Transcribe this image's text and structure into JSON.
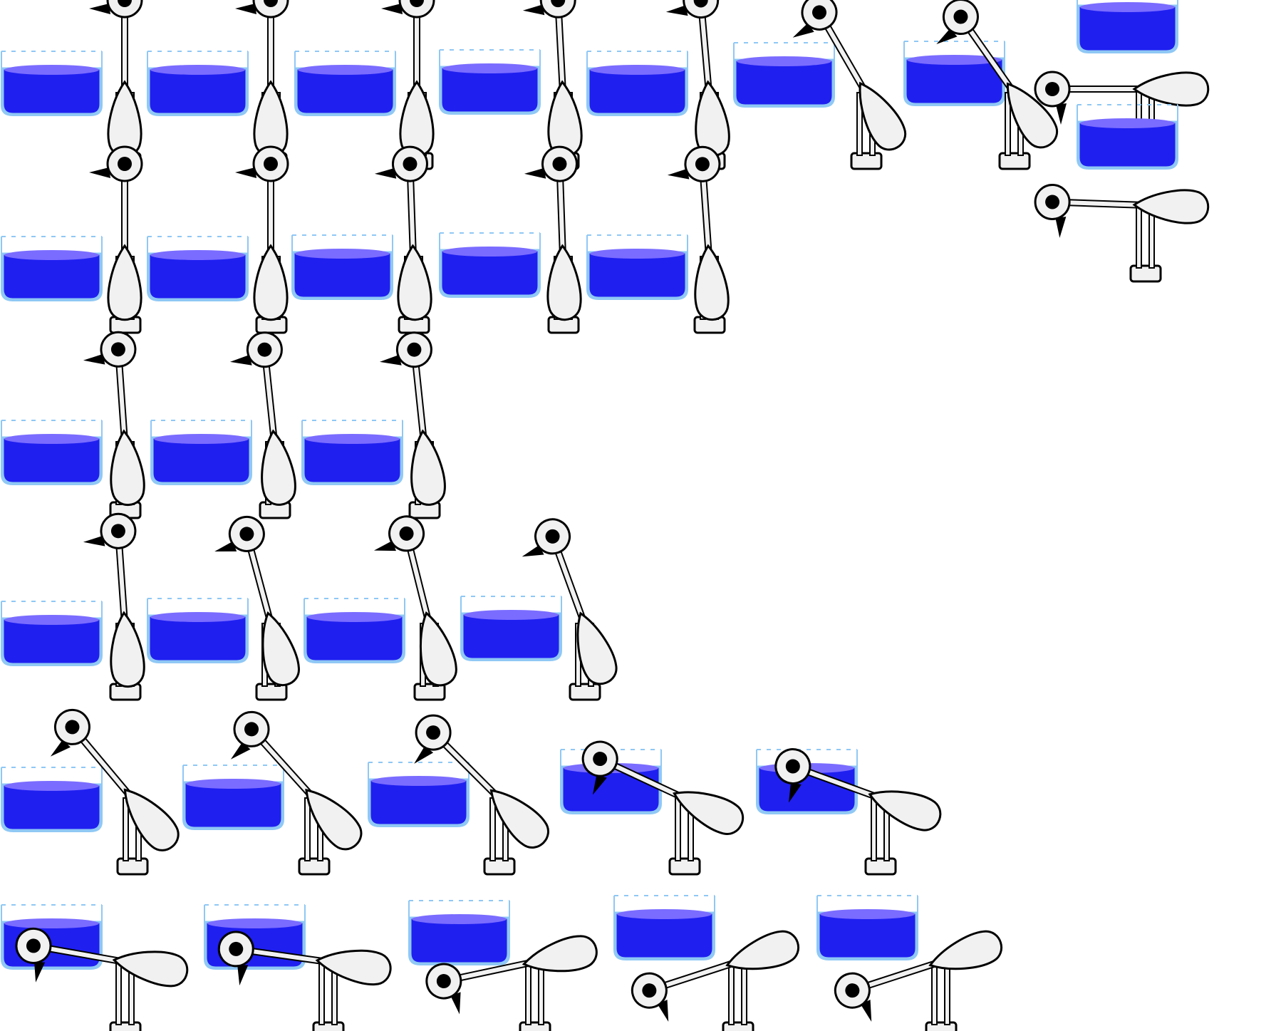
{
  "colors": {
    "background": "#ffffff",
    "water": "#1f1ff0",
    "water_surface": "#7a6cff",
    "glass_outline": "#8fc8f5",
    "bird_body": "#f1f1f1",
    "outline": "#000000",
    "eye": "#000000",
    "beak": "#000000"
  },
  "frames": [
    {
      "row": 0,
      "col": 0,
      "tilt_deg": 0
    },
    {
      "row": 0,
      "col": 1,
      "tilt_deg": 0
    },
    {
      "row": 0,
      "col": 2,
      "tilt_deg": 0
    },
    {
      "row": 0,
      "col": 3,
      "tilt_deg": 3
    },
    {
      "row": 0,
      "col": 4,
      "tilt_deg": 5
    },
    {
      "row": 0,
      "col": 5,
      "tilt_deg": 30
    },
    {
      "row": 0,
      "col": 6,
      "tilt_deg": 35
    },
    {
      "row": 0,
      "col": 7,
      "tilt_deg": 90
    },
    {
      "row": 0,
      "col": 7,
      "tilt_deg": 88
    },
    {
      "row": 1,
      "col": 0,
      "tilt_deg": 0
    },
    {
      "row": 1,
      "col": 1,
      "tilt_deg": 0
    },
    {
      "row": 1,
      "col": 2,
      "tilt_deg": 2
    },
    {
      "row": 1,
      "col": 3,
      "tilt_deg": 2
    },
    {
      "row": 1,
      "col": 4,
      "tilt_deg": 4
    },
    {
      "row": 2,
      "col": 0,
      "tilt_deg": 4
    },
    {
      "row": 2,
      "col": 1,
      "tilt_deg": 6
    },
    {
      "row": 2,
      "col": 2,
      "tilt_deg": 6
    },
    {
      "row": 3,
      "col": 0,
      "tilt_deg": 4
    },
    {
      "row": 3,
      "col": 1,
      "tilt_deg": 15
    },
    {
      "row": 3,
      "col": 2,
      "tilt_deg": 14
    },
    {
      "row": 3,
      "col": 3,
      "tilt_deg": 20
    },
    {
      "row": 4,
      "col": 0,
      "tilt_deg": 40
    },
    {
      "row": 4,
      "col": 1,
      "tilt_deg": 42
    },
    {
      "row": 4,
      "col": 2,
      "tilt_deg": 45
    },
    {
      "row": 4,
      "col": 3,
      "tilt_deg": 65
    },
    {
      "row": 4,
      "col": 4,
      "tilt_deg": 70
    },
    {
      "row": 5,
      "col": 0,
      "tilt_deg": 80
    },
    {
      "row": 5,
      "col": 1,
      "tilt_deg": 82
    },
    {
      "row": 5,
      "col": 2,
      "tilt_deg": 102
    },
    {
      "row": 5,
      "col": 3,
      "tilt_deg": 108
    },
    {
      "row": 5,
      "col": 4,
      "tilt_deg": 108
    }
  ]
}
